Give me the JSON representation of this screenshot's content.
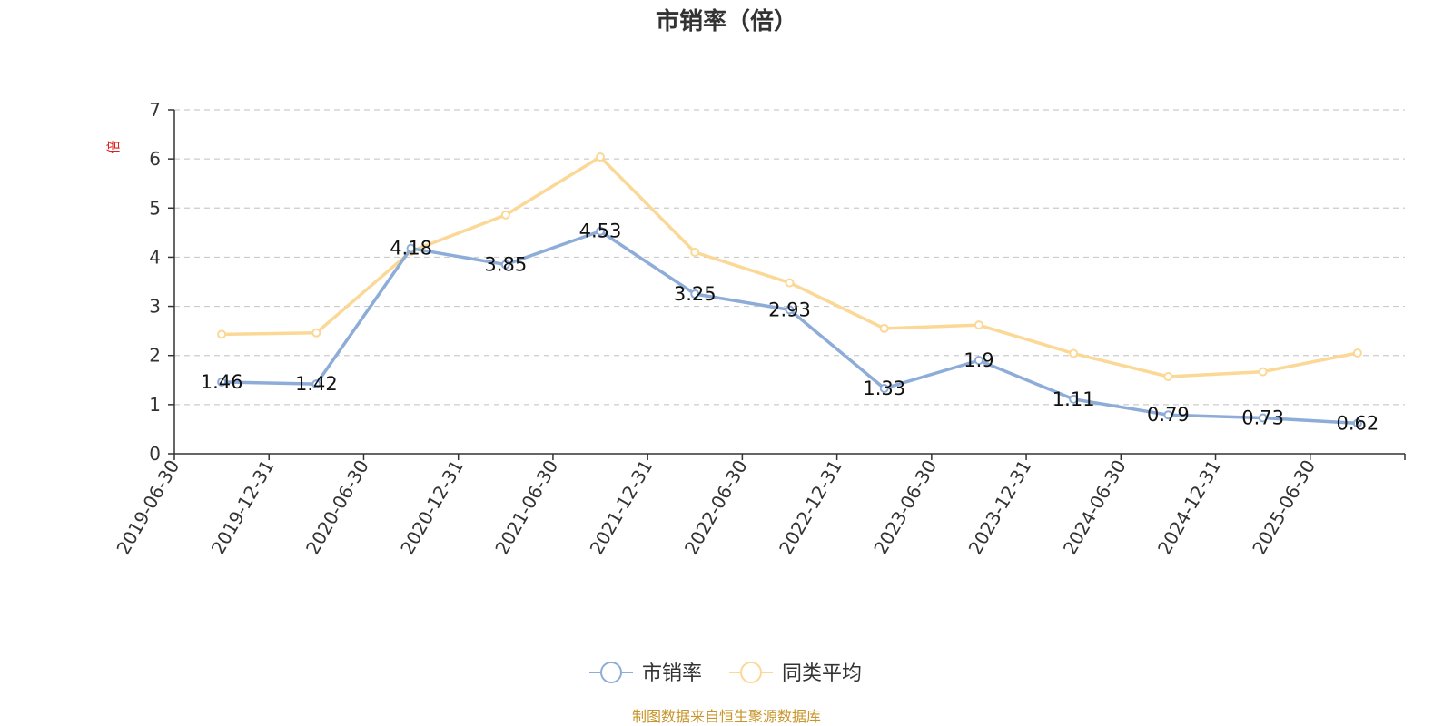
{
  "chart_data": {
    "type": "line",
    "title": "市销率（倍）",
    "ylabel": "倍",
    "xlabel": "",
    "ylim": [
      0,
      7
    ],
    "yticks": [
      0,
      1,
      2,
      3,
      4,
      5,
      6,
      7
    ],
    "grid": true,
    "legend_position": "bottom",
    "categories": [
      "2019-06-30",
      "2019-12-31",
      "2020-06-30",
      "2020-12-31",
      "2021-06-30",
      "2021-12-31",
      "2022-06-30",
      "2022-12-31",
      "2023-06-30",
      "2023-12-31",
      "2024-06-30",
      "2024-12-31",
      "2025-06-30"
    ],
    "series": [
      {
        "name": "市销率",
        "color": "#8eacd8",
        "values": [
          1.46,
          1.42,
          4.18,
          3.85,
          4.53,
          3.25,
          2.93,
          1.33,
          1.9,
          1.11,
          0.79,
          0.73,
          0.62
        ],
        "labels": [
          "1.46",
          "1.42",
          "4.18",
          "3.85",
          "4.53",
          "3.25",
          "2.93",
          "1.33",
          "1.9",
          "1.11",
          "0.79",
          "0.73",
          "0.62"
        ]
      },
      {
        "name": "同类平均",
        "color": "#fbd896",
        "values": [
          2.43,
          2.46,
          4.12,
          4.86,
          6.04,
          4.1,
          3.48,
          2.55,
          2.62,
          2.04,
          1.57,
          1.67,
          2.05
        ]
      }
    ],
    "source": "制图数据来自恒生聚源数据库"
  }
}
